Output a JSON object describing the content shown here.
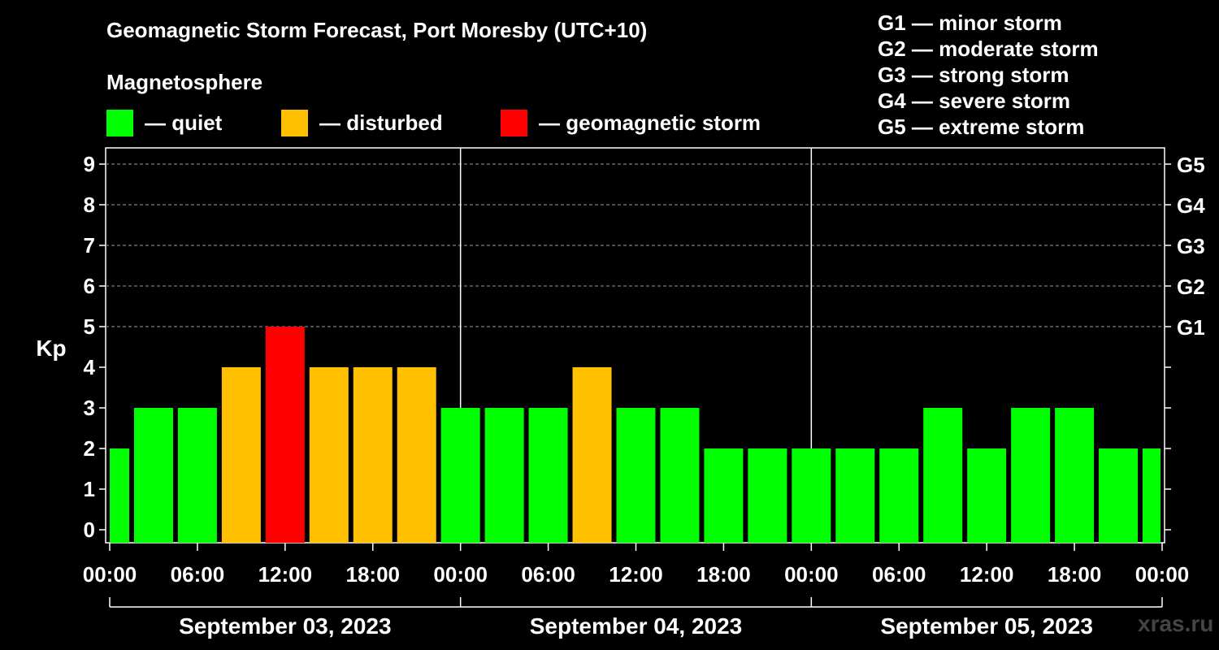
{
  "title": "Geomagnetic Storm Forecast, Port Moresby (UTC+10)",
  "legend": {
    "title": "Magnetosphere",
    "items": [
      {
        "label": "— quiet",
        "color": "#00ff00"
      },
      {
        "label": "— disturbed",
        "color": "#ffc000"
      },
      {
        "label": "— geomagnetic storm",
        "color": "#ff0000"
      }
    ]
  },
  "g_scale": [
    "G1 — minor storm",
    "G2 — moderate storm",
    "G3 — strong storm",
    "G4 — severe storm",
    "G5 — extreme storm"
  ],
  "watermark": "xras.ru",
  "chart_data": {
    "type": "bar",
    "ylabel": "Kp",
    "ylim": [
      0,
      9
    ],
    "yticks": [
      "0",
      "1",
      "2",
      "3",
      "4",
      "5",
      "6",
      "7",
      "8",
      "9"
    ],
    "right_ticks": [
      {
        "kp": 5,
        "label": "G1"
      },
      {
        "kp": 6,
        "label": "G2"
      },
      {
        "kp": 7,
        "label": "G3"
      },
      {
        "kp": 8,
        "label": "G4"
      },
      {
        "kp": 9,
        "label": "G5"
      }
    ],
    "grid": "horizontal dashed at Kp 5-9",
    "xtick_labels": [
      "00:00",
      "06:00",
      "12:00",
      "18:00",
      "00:00",
      "06:00",
      "12:00",
      "18:00",
      "00:00",
      "06:00",
      "12:00",
      "18:00",
      "00:00"
    ],
    "days": [
      "September 03, 2023",
      "September 04, 2023",
      "September 05, 2023"
    ],
    "interval_hours": 3,
    "values": [
      2,
      3,
      3,
      4,
      5,
      4,
      4,
      4,
      3,
      3,
      3,
      4,
      3,
      3,
      2,
      2,
      2,
      2,
      2,
      3,
      2,
      3,
      3,
      2,
      2
    ],
    "colors": {
      "quiet": "#00ff00",
      "disturbed": "#ffc000",
      "storm": "#ff0000"
    }
  }
}
